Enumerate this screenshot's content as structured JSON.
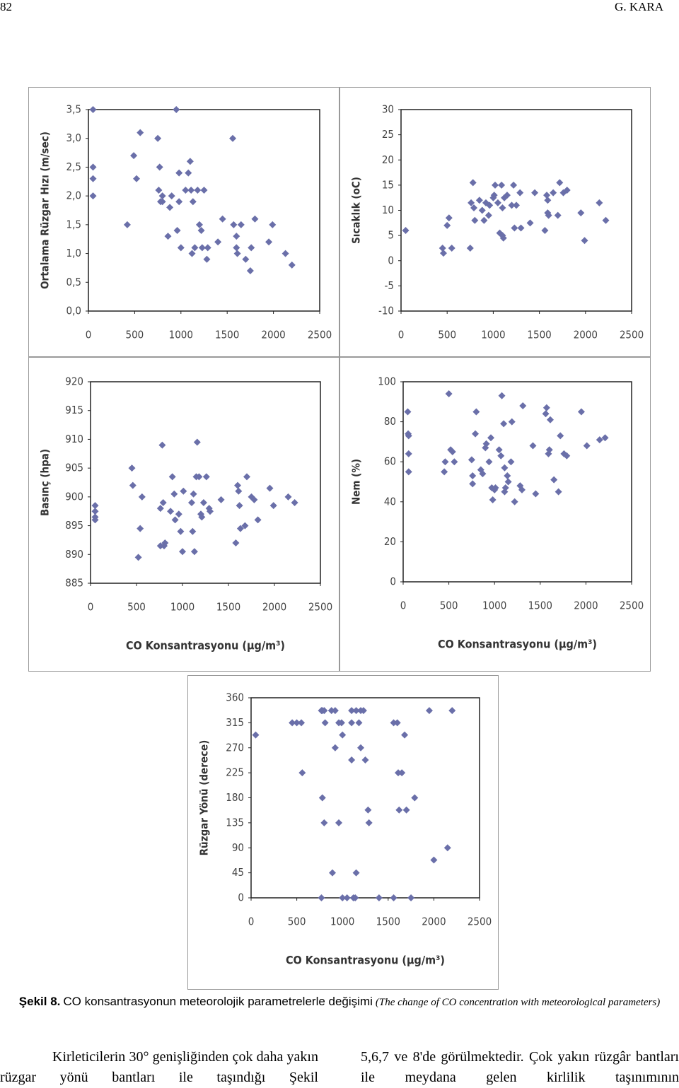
{
  "header": {
    "page_number": "82",
    "author": "G. KARA"
  },
  "chart_data": [
    {
      "type": "scatter",
      "y_label": "Ortalama Rüzgar Hızı (m/sec)",
      "color": "#6a6fa9",
      "xlim": [
        0,
        2500
      ],
      "xticks": [
        0,
        500,
        1000,
        1500,
        2000,
        2500
      ],
      "ylim": [
        0,
        3.5
      ],
      "yticks": [
        {
          "value": 0,
          "label": "0,0"
        },
        {
          "value": 0.5,
          "label": "0,5"
        },
        {
          "value": 1,
          "label": "1,0"
        },
        {
          "value": 1.5,
          "label": "1,5"
        },
        {
          "value": 2,
          "label": "2,0"
        },
        {
          "value": 2.5,
          "label": "2,5"
        },
        {
          "value": 3,
          "label": "3,0"
        },
        {
          "value": 3.5,
          "label": "3,5"
        }
      ],
      "x": [
        50,
        50,
        50,
        50,
        420,
        490,
        520,
        560,
        750,
        760,
        770,
        780,
        800,
        800,
        860,
        880,
        900,
        950,
        960,
        980,
        980,
        1000,
        1050,
        1080,
        1100,
        1110,
        1120,
        1130,
        1150,
        1180,
        1200,
        1220,
        1230,
        1250,
        1280,
        1290,
        1400,
        1450,
        1560,
        1570,
        1600,
        1600,
        1610,
        1650,
        1700,
        1750,
        1760,
        1800,
        1950,
        1990,
        2130,
        2200
      ],
      "values": [
        3.5,
        2.5,
        2.3,
        2.0,
        1.5,
        2.7,
        2.3,
        3.1,
        3.0,
        2.1,
        2.5,
        1.9,
        2.0,
        1.9,
        1.3,
        1.8,
        2.0,
        3.5,
        1.4,
        1.9,
        2.4,
        1.1,
        2.1,
        2.4,
        2.6,
        2.1,
        1.0,
        1.9,
        1.1,
        2.1,
        1.5,
        1.4,
        1.1,
        2.1,
        0.9,
        1.1,
        1.2,
        1.6,
        3.0,
        1.5,
        1.3,
        1.1,
        1.0,
        1.5,
        0.9,
        0.7,
        1.1,
        1.6,
        1.2,
        1.5,
        1.0,
        0.8
      ]
    },
    {
      "type": "scatter",
      "y_label": "Sıcaklık (oC)",
      "color": "#6a6fa9",
      "xlim": [
        0,
        2500
      ],
      "xticks": [
        0,
        500,
        1000,
        1500,
        2000,
        2500
      ],
      "ylim": [
        -10,
        30
      ],
      "yticks": [
        -10,
        -5,
        0,
        5,
        10,
        15,
        20,
        25,
        30
      ],
      "x": [
        50,
        450,
        460,
        500,
        520,
        550,
        750,
        760,
        780,
        790,
        800,
        850,
        880,
        900,
        920,
        950,
        960,
        1000,
        1010,
        1020,
        1050,
        1070,
        1090,
        1100,
        1110,
        1100,
        1120,
        1150,
        1200,
        1220,
        1230,
        1250,
        1290,
        1300,
        1400,
        1450,
        1560,
        1580,
        1590,
        1590,
        1600,
        1650,
        1700,
        1720,
        1760,
        1800,
        1950,
        1990,
        2150,
        2220
      ],
      "values": [
        6,
        2.5,
        1.5,
        7,
        8.5,
        2.5,
        2.5,
        11.5,
        15.5,
        10.5,
        8,
        12,
        10,
        8,
        11.5,
        9,
        11,
        12.5,
        13,
        15,
        11.5,
        5.5,
        15,
        5,
        4.5,
        10.5,
        12.5,
        13,
        11,
        15,
        6.5,
        11,
        13.5,
        6.5,
        7.5,
        13.5,
        6,
        13,
        12,
        9.5,
        9,
        13.5,
        9,
        15.5,
        13.5,
        14,
        9.5,
        4,
        11.5,
        8
      ]
    },
    {
      "type": "scatter",
      "y_label": "Basınç (hpa)",
      "x_label": "CO Konsantrasyonu (µg/m³)",
      "color": "#6a6fa9",
      "xlim": [
        0,
        2500
      ],
      "xticks": [
        0,
        500,
        1000,
        1500,
        2000,
        2500
      ],
      "ylim": [
        885,
        920
      ],
      "yticks": [
        885,
        890,
        895,
        900,
        905,
        910,
        915,
        920
      ],
      "x": [
        50,
        50,
        50,
        50,
        450,
        460,
        520,
        540,
        560,
        760,
        760,
        780,
        790,
        800,
        810,
        870,
        890,
        910,
        920,
        960,
        980,
        1000,
        1010,
        1100,
        1110,
        1120,
        1130,
        1150,
        1160,
        1180,
        1200,
        1210,
        1230,
        1260,
        1290,
        1300,
        1420,
        1580,
        1600,
        1610,
        1620,
        1630,
        1680,
        1700,
        1750,
        1780,
        1820,
        1950,
        1990,
        2150,
        2220
      ],
      "values": [
        898.5,
        897.5,
        896.5,
        896,
        905,
        902,
        889.5,
        894.5,
        900,
        891.5,
        898,
        909,
        899,
        891.5,
        892,
        897.5,
        903.5,
        900.5,
        896,
        897,
        894,
        890.5,
        901,
        899,
        894,
        900.5,
        890.5,
        903.5,
        909.5,
        903.5,
        897,
        896.5,
        899,
        903.5,
        898,
        897.5,
        899.5,
        892,
        902,
        901,
        898.5,
        894.5,
        895,
        903.5,
        900,
        899.5,
        896,
        901.5,
        898.5,
        900,
        899
      ]
    },
    {
      "type": "scatter",
      "y_label": "Nem (%)",
      "x_label": "CO Konsantrasyonu (µg/m³)",
      "color": "#6a6fa9",
      "xlim": [
        0,
        2500
      ],
      "xticks": [
        0,
        500,
        1000,
        1500,
        2000,
        2500
      ],
      "ylim": [
        0,
        100
      ],
      "yticks": [
        0,
        20,
        40,
        60,
        80,
        100
      ],
      "x": [
        50,
        55,
        60,
        60,
        60,
        450,
        460,
        500,
        520,
        540,
        560,
        750,
        760,
        760,
        800,
        790,
        850,
        870,
        900,
        910,
        940,
        960,
        970,
        980,
        1000,
        1010,
        1050,
        1070,
        1080,
        1100,
        1110,
        1110,
        1120,
        1140,
        1150,
        1180,
        1190,
        1220,
        1280,
        1300,
        1310,
        1420,
        1450,
        1560,
        1570,
        1590,
        1600,
        1610,
        1650,
        1700,
        1720,
        1760,
        1790,
        1950,
        2010,
        2150,
        2210
      ],
      "values": [
        85,
        74,
        73,
        64,
        55,
        55,
        60,
        94,
        66,
        65,
        60,
        61,
        53,
        49,
        85,
        74,
        56,
        54,
        67,
        69,
        60,
        72,
        47,
        41,
        46,
        47,
        66,
        63,
        93,
        79,
        57,
        45,
        47,
        53,
        50,
        60,
        80,
        40,
        48,
        46,
        88,
        68,
        44,
        84,
        87,
        64,
        66,
        81,
        51,
        45,
        73,
        64,
        63,
        85,
        68,
        71,
        72
      ]
    },
    {
      "type": "scatter",
      "y_label": "Rüzgar Yönü (derece)",
      "x_label": "CO Konsantrasyonu (µg/m³)",
      "color": "#6a6fa9",
      "xlim": [
        0,
        2500
      ],
      "xticks": [
        0,
        500,
        1000,
        1500,
        2000,
        2500
      ],
      "ylim": [
        0,
        360
      ],
      "yticks": [
        0,
        45,
        90,
        135,
        180,
        225,
        270,
        315,
        360
      ],
      "x": [
        50,
        450,
        500,
        550,
        560,
        770,
        780,
        780,
        800,
        800,
        810,
        880,
        890,
        920,
        920,
        960,
        960,
        990,
        1000,
        1000,
        1050,
        1100,
        1100,
        1100,
        1120,
        1140,
        1150,
        1150,
        1180,
        1200,
        1200,
        1230,
        1250,
        1280,
        1290,
        1400,
        1560,
        1560,
        1600,
        1610,
        1620,
        1650,
        1680,
        1700,
        1750,
        1790,
        1950,
        2000,
        2150,
        2200,
        770
      ],
      "values": [
        293,
        315,
        315,
        315,
        225,
        337,
        337,
        180,
        337,
        135,
        315,
        337,
        45,
        337,
        270,
        315,
        135,
        315,
        0,
        293,
        0,
        337,
        315,
        248,
        0,
        0,
        337,
        45,
        315,
        337,
        270,
        337,
        248,
        158,
        135,
        0,
        315,
        0,
        315,
        225,
        158,
        225,
        293,
        158,
        0,
        180,
        337,
        68,
        90,
        337,
        0
      ]
    }
  ],
  "caption": {
    "label": "Şekil 8.",
    "text": "CO konsantrasyonun meteorolojik parametrelerle değişimi",
    "translation": "(The change of CO concentration with meteorological parameters)"
  },
  "body": {
    "left": "Kirleticilerin 30° genişliğinden çok daha yakın rüzgar yönü bantları ile taşındığı Şekil",
    "right": "5,6,7 ve 8'de görülmektedir. Çok yakın rüzgâr bantları ile meydana gelen kirlilik taşınımının"
  }
}
